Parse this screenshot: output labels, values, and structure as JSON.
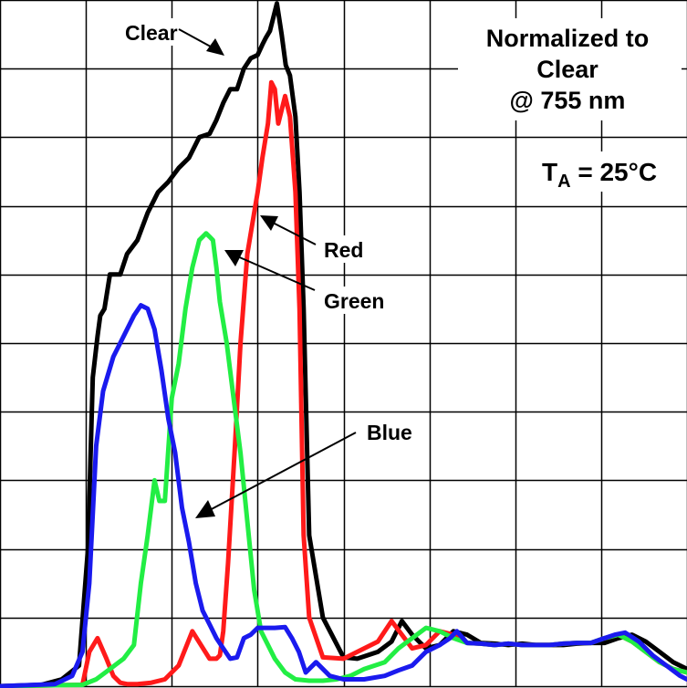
{
  "chart_data": {
    "type": "line",
    "title": "",
    "xlabel": "",
    "ylabel": "",
    "xlim": [
      0,
      100
    ],
    "ylim": [
      0,
      100
    ],
    "grid": true,
    "grid_x_divisions": 8,
    "grid_y_divisions": 10,
    "annotations": {
      "normalized": [
        "Normalized to",
        "Clear",
        "@ 755 nm"
      ],
      "ta_main": "T",
      "ta_sub": "A",
      "ta_rest": " = 25°C"
    },
    "series": [
      {
        "name": "Clear",
        "color": "#000000",
        "x": [
          0,
          6,
          9,
          11.5,
          12.8,
          13.5,
          14.2,
          14.6,
          15.2,
          16,
          17.5,
          18.5,
          20,
          21.5,
          23,
          24.5,
          26,
          27.5,
          29,
          30.5,
          31.5,
          32.5,
          33.5,
          34.5,
          35.5,
          36.5,
          37.5,
          38.2,
          38.7,
          39.3,
          40.3,
          41,
          41.6,
          42.2,
          43,
          43.6,
          44.2,
          45,
          47,
          50,
          52,
          55,
          57,
          58.5,
          60,
          62,
          64,
          66,
          68,
          70,
          72,
          74,
          76,
          78,
          80,
          82,
          84,
          86,
          88,
          90,
          92,
          94,
          96,
          98,
          100
        ],
        "y": [
          0,
          0.2,
          1,
          3,
          20,
          45,
          51,
          54,
          55,
          60,
          60,
          63,
          65,
          69,
          72,
          73.5,
          75.5,
          77,
          80,
          80.5,
          82.5,
          85,
          87,
          87,
          90,
          91.5,
          92,
          93.5,
          94.5,
          95.5,
          99.5,
          95,
          90.5,
          89,
          83,
          72,
          55,
          22,
          10,
          4.2,
          4,
          5,
          6.5,
          9.5,
          7.5,
          5.5,
          6,
          8,
          7.5,
          6.3,
          6.2,
          6,
          6.2,
          6,
          6,
          6,
          6.2,
          6.3,
          6.3,
          7,
          7.5,
          6.5,
          5,
          3.5,
          2.5
        ]
      },
      {
        "name": "Red",
        "color": "#ff1a1a",
        "x": [
          0,
          12,
          13,
          14.2,
          15.5,
          16.5,
          17.5,
          18.5,
          20,
          22,
          24,
          26,
          28,
          30.5,
          31.5,
          32,
          32.5,
          33.2,
          34.2,
          35,
          36,
          37,
          37.5,
          38.2,
          39,
          39.5,
          40,
          40.5,
          41.5,
          42.2,
          43,
          43.6,
          44.2,
          45,
          47,
          50,
          52,
          55,
          57,
          58.5,
          60,
          62,
          64,
          66,
          68,
          70,
          72,
          74,
          76,
          78,
          80,
          82,
          84,
          86,
          88,
          90,
          92,
          94,
          96,
          98,
          100
        ],
        "y": [
          0,
          0.2,
          5,
          7,
          4,
          1.5,
          0.5,
          0.3,
          0.3,
          0.5,
          1,
          3,
          8,
          4,
          4,
          4.5,
          8,
          18,
          35,
          50,
          63,
          69,
          72,
          77,
          82,
          88,
          87,
          82,
          86,
          83,
          72,
          55,
          22,
          10,
          4.2,
          4,
          5,
          6.5,
          9.5,
          7.5,
          5.5,
          6,
          8,
          7.5,
          6.3,
          6.2,
          6,
          6.2,
          6,
          6,
          6,
          6.2,
          6.3,
          6.3,
          7,
          7.5,
          6.5,
          5,
          3.5,
          2.5,
          2
        ]
      },
      {
        "name": "Green",
        "color": "#22ee44",
        "x": [
          0,
          12,
          14,
          16,
          18,
          19.5,
          20.5,
          21.5,
          22.5,
          23.2,
          24,
          25,
          26,
          27,
          28,
          29,
          30,
          30.5,
          31,
          31.5,
          32,
          33,
          34,
          35,
          36,
          37,
          38,
          39,
          40,
          41.5,
          43,
          45,
          47,
          49,
          51,
          53,
          56,
          58,
          60,
          62,
          64,
          66,
          68,
          70,
          72,
          74,
          76,
          78,
          80,
          82,
          84,
          86,
          88,
          90,
          92,
          94,
          96,
          98,
          100
        ],
        "y": [
          0,
          0.2,
          1,
          2.5,
          4,
          6,
          15,
          22,
          30,
          27,
          27,
          42,
          47,
          55,
          61,
          65,
          66,
          65.5,
          65,
          61,
          56,
          50,
          42,
          34,
          24,
          14,
          8,
          6,
          4,
          2,
          1,
          0.8,
          0.8,
          1,
          1.5,
          2.5,
          3.5,
          5.5,
          7,
          8.5,
          8,
          7,
          6.3,
          6.2,
          6,
          6.2,
          6,
          6,
          6,
          6.2,
          6.3,
          6.3,
          7,
          7.5,
          6.5,
          5,
          3.5,
          2.5,
          2
        ]
      },
      {
        "name": "Blue",
        "color": "#1a1aee",
        "x": [
          0,
          8,
          10.5,
          12,
          13,
          14,
          15,
          16.5,
          18,
          19.5,
          20.5,
          21.5,
          22.5,
          23.5,
          24.5,
          25.5,
          26.5,
          27.5,
          28.5,
          29.5,
          30.5,
          31.5,
          32.5,
          33.5,
          34.5,
          35.5,
          36.5,
          37.5,
          38.5,
          40,
          41.5,
          42.5,
          43.5,
          44.5,
          46,
          48,
          50,
          53,
          56,
          58,
          60,
          62,
          64,
          65.5,
          66.5,
          68,
          70,
          72,
          74,
          76,
          78,
          80,
          82,
          84,
          86,
          88,
          89.5,
          91,
          93,
          95,
          97,
          99,
          100
        ],
        "y": [
          0,
          0.3,
          1.5,
          5,
          15,
          35,
          43,
          48,
          51,
          54,
          55.5,
          55,
          52,
          46,
          39,
          34,
          26,
          21,
          15,
          11,
          9,
          7,
          5.5,
          4,
          4.2,
          7,
          7.5,
          8.5,
          8.5,
          8.5,
          8.6,
          7,
          5,
          2,
          3.5,
          1.5,
          1,
          1,
          1.5,
          2.3,
          3,
          5,
          6,
          7,
          8,
          6.3,
          6.2,
          6,
          6.2,
          6,
          6,
          6,
          6.2,
          6.3,
          6.3,
          7,
          7.5,
          7.8,
          6.5,
          4.5,
          3,
          1.5,
          1
        ]
      }
    ]
  }
}
